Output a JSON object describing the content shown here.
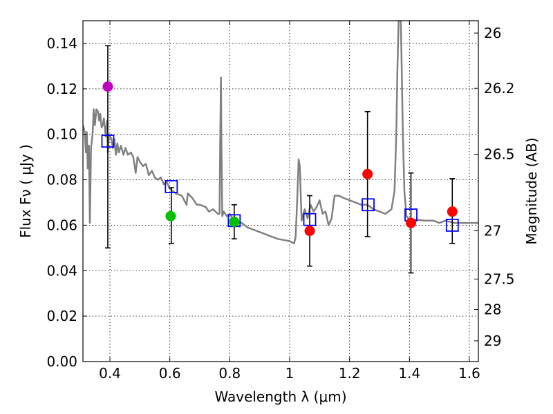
{
  "chart_data": {
    "type": "scatter",
    "xlabel": "Wavelength  λ (μm)",
    "ylabel": "Flux  Fν  ( μJy )",
    "y2label": "Magnitude (AB)",
    "xlim": [
      0.31,
      1.63
    ],
    "ylim": [
      0.0,
      0.15
    ],
    "grid": true,
    "x_ticks": [
      0.4,
      0.6,
      0.8,
      1.0,
      1.2,
      1.4,
      1.6
    ],
    "x_tick_labels": [
      "0.4",
      "0.6",
      "0.8",
      "1",
      "1.2",
      "1.4",
      "1.6"
    ],
    "y_ticks": [
      0.0,
      0.02,
      0.04,
      0.06,
      0.08,
      0.1,
      0.12,
      0.14
    ],
    "y_tick_labels": [
      "0.00",
      "0.02",
      "0.04",
      "0.06",
      "0.08",
      "0.10",
      "0.12",
      "0.14"
    ],
    "mag_ticks": [
      {
        "mag": 26,
        "label": "26"
      },
      {
        "mag": 26.2,
        "label": "26.2"
      },
      {
        "mag": 26.5,
        "label": "26.5"
      },
      {
        "mag": 27,
        "label": "27"
      },
      {
        "mag": 27.5,
        "label": "27.5"
      },
      {
        "mag": 28,
        "label": "28"
      },
      {
        "mag": 29,
        "label": "29"
      }
    ],
    "photometry": [
      {
        "x": 0.393,
        "y": 0.121,
        "err": null,
        "color": "#bf00bf"
      },
      {
        "x": 0.603,
        "y": 0.064,
        "err": null,
        "color": "#00c000"
      },
      {
        "x": 0.815,
        "y": 0.0615,
        "err": null,
        "color": "#00c000"
      },
      {
        "x": 1.067,
        "y": 0.0575,
        "err": [
          0.042,
          0.073
        ],
        "color": "#ff0000"
      },
      {
        "x": 1.26,
        "y": 0.0825,
        "err": [
          0.055,
          0.11
        ],
        "color": "#ff0000"
      },
      {
        "x": 1.405,
        "y": 0.061,
        "err": [
          0.039,
          0.083
        ],
        "color": "#ff0000"
      },
      {
        "x": 1.543,
        "y": 0.066,
        "err": [
          0.052,
          0.0805
        ],
        "color": "#ff0000"
      }
    ],
    "model_points": [
      {
        "x": 0.393,
        "y": 0.097,
        "err": [
          0.05,
          0.139
        ]
      },
      {
        "x": 0.605,
        "y": 0.077,
        "err": [
          0.052,
          0.0765
        ]
      },
      {
        "x": 0.815,
        "y": 0.062,
        "err": [
          0.054,
          0.069
        ]
      },
      {
        "x": 1.067,
        "y": 0.0625,
        "err": null
      },
      {
        "x": 1.262,
        "y": 0.069,
        "err": null
      },
      {
        "x": 1.405,
        "y": 0.0645,
        "err": null
      },
      {
        "x": 1.543,
        "y": 0.06,
        "err": null
      }
    ],
    "spectrum": [
      [
        0.31,
        0.104
      ],
      [
        0.316,
        0.101
      ],
      [
        0.32,
        0.092
      ],
      [
        0.323,
        0.101
      ],
      [
        0.326,
        0.085
      ],
      [
        0.33,
        0.095
      ],
      [
        0.333,
        0.061
      ],
      [
        0.337,
        0.094
      ],
      [
        0.342,
        0.1
      ],
      [
        0.346,
        0.111
      ],
      [
        0.35,
        0.104
      ],
      [
        0.355,
        0.111
      ],
      [
        0.36,
        0.11
      ],
      [
        0.364,
        0.106
      ],
      [
        0.368,
        0.109
      ],
      [
        0.372,
        0.103
      ],
      [
        0.376,
        0.104
      ],
      [
        0.38,
        0.107
      ],
      [
        0.386,
        0.099
      ],
      [
        0.39,
        0.106
      ],
      [
        0.393,
        0.092
      ],
      [
        0.397,
        0.1
      ],
      [
        0.405,
        0.098
      ],
      [
        0.41,
        0.094
      ],
      [
        0.415,
        0.098
      ],
      [
        0.42,
        0.091
      ],
      [
        0.425,
        0.096
      ],
      [
        0.43,
        0.092
      ],
      [
        0.437,
        0.095
      ],
      [
        0.445,
        0.091
      ],
      [
        0.452,
        0.094
      ],
      [
        0.46,
        0.091
      ],
      [
        0.47,
        0.092
      ],
      [
        0.478,
        0.09
      ],
      [
        0.486,
        0.083
      ],
      [
        0.492,
        0.09
      ],
      [
        0.5,
        0.088
      ],
      [
        0.51,
        0.086
      ],
      [
        0.52,
        0.087
      ],
      [
        0.53,
        0.082
      ],
      [
        0.54,
        0.084
      ],
      [
        0.55,
        0.081
      ],
      [
        0.56,
        0.08
      ],
      [
        0.57,
        0.081
      ],
      [
        0.58,
        0.078
      ],
      [
        0.59,
        0.079
      ],
      [
        0.6,
        0.076
      ],
      [
        0.62,
        0.074
      ],
      [
        0.64,
        0.073
      ],
      [
        0.656,
        0.069
      ],
      [
        0.66,
        0.074
      ],
      [
        0.675,
        0.072
      ],
      [
        0.69,
        0.069
      ],
      [
        0.7,
        0.069
      ],
      [
        0.72,
        0.068
      ],
      [
        0.73,
        0.066
      ],
      [
        0.745,
        0.067
      ],
      [
        0.76,
        0.065
      ],
      [
        0.766,
        0.065
      ],
      [
        0.768,
        0.095
      ],
      [
        0.7705,
        0.125
      ],
      [
        0.7725,
        0.095
      ],
      [
        0.775,
        0.064
      ],
      [
        0.78,
        0.066
      ],
      [
        0.79,
        0.064
      ],
      [
        0.8,
        0.065
      ],
      [
        0.81,
        0.063
      ],
      [
        0.82,
        0.061
      ],
      [
        0.84,
        0.061
      ],
      [
        0.86,
        0.059
      ],
      [
        0.88,
        0.058
      ],
      [
        0.9,
        0.057
      ],
      [
        0.92,
        0.056
      ],
      [
        0.94,
        0.055
      ],
      [
        0.96,
        0.054
      ],
      [
        0.98,
        0.0535
      ],
      [
        1.0,
        0.053
      ],
      [
        1.015,
        0.052
      ],
      [
        1.02,
        0.055
      ],
      [
        1.025,
        0.07
      ],
      [
        1.03,
        0.089
      ],
      [
        1.034,
        0.086
      ],
      [
        1.04,
        0.062
      ],
      [
        1.05,
        0.067
      ],
      [
        1.06,
        0.063
      ],
      [
        1.07,
        0.069
      ],
      [
        1.08,
        0.066
      ],
      [
        1.09,
        0.068
      ],
      [
        1.1,
        0.071
      ],
      [
        1.11,
        0.065
      ],
      [
        1.12,
        0.066
      ],
      [
        1.13,
        0.06
      ],
      [
        1.14,
        0.063
      ],
      [
        1.15,
        0.073
      ],
      [
        1.165,
        0.073
      ],
      [
        1.18,
        0.072
      ],
      [
        1.2,
        0.071
      ],
      [
        1.22,
        0.07
      ],
      [
        1.24,
        0.069
      ],
      [
        1.26,
        0.069
      ],
      [
        1.28,
        0.067
      ],
      [
        1.3,
        0.066
      ],
      [
        1.32,
        0.065
      ],
      [
        1.34,
        0.067
      ],
      [
        1.35,
        0.075
      ],
      [
        1.356,
        0.1
      ],
      [
        1.36,
        0.13
      ],
      [
        1.364,
        0.15
      ],
      [
        1.371,
        0.15
      ],
      [
        1.374,
        0.13
      ],
      [
        1.378,
        0.1
      ],
      [
        1.383,
        0.075
      ],
      [
        1.39,
        0.064
      ],
      [
        1.4,
        0.0625
      ],
      [
        1.42,
        0.0625
      ],
      [
        1.45,
        0.062
      ],
      [
        1.48,
        0.062
      ],
      [
        1.5,
        0.061
      ],
      [
        1.52,
        0.062
      ],
      [
        1.55,
        0.061
      ],
      [
        1.58,
        0.061
      ],
      [
        1.6,
        0.061
      ],
      [
        1.63,
        0.061
      ]
    ]
  }
}
